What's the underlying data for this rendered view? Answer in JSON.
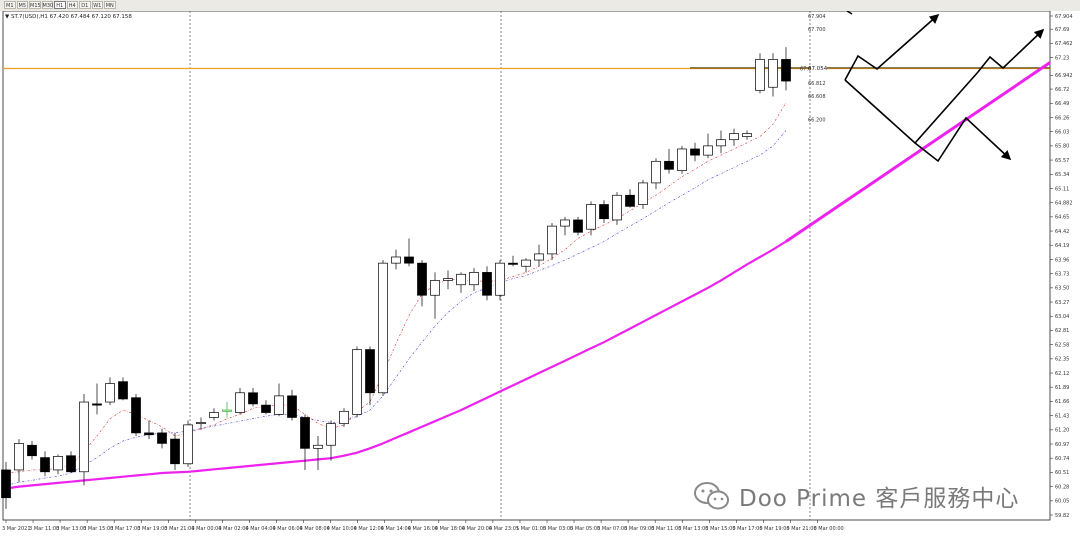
{
  "toolbar": {
    "timeframes": [
      "M1",
      "M5",
      "M15",
      "M30",
      "H1",
      "H4",
      "D1",
      "W1",
      "MN"
    ],
    "active": "H1"
  },
  "symbol_header": "▼ ST.7(USD),H1  67.420 67.484 67.120 67.158",
  "watermark": "Doo Prime 客戶服務中心",
  "chart_data": {
    "type": "candlestick",
    "title": "",
    "y_ticks": [
      67.904,
      67.69,
      67.462,
      67.23,
      66.942,
      66.72,
      66.49,
      66.26,
      66.03,
      65.8,
      65.57,
      65.34,
      65.11,
      64.882,
      64.65,
      64.42,
      64.19,
      63.96,
      63.73,
      63.5,
      63.27,
      63.04,
      62.81,
      62.58,
      62.35,
      62.12,
      61.89,
      61.66,
      61.43,
      61.2,
      60.97,
      60.74,
      60.51,
      60.28,
      60.05,
      59.82
    ],
    "x_ticks": [
      "3 Mar 2021",
      "3 Mar 11:00",
      "3 Mar 13:00",
      "3 Mar 15:00",
      "3 Mar 17:00",
      "3 Mar 19:00",
      "3 Mar 21:00",
      "4 Mar 00:00",
      "4 Mar 02:00",
      "4 Mar 04:00",
      "4 Mar 06:00",
      "4 Mar 08:00",
      "4 Mar 10:00",
      "4 Mar 12:00",
      "4 Mar 14:00",
      "4 Mar 16:00",
      "4 Mar 18:00",
      "4 Mar 20:00",
      "4 Mar 23:01",
      "5 Mar 01:00",
      "5 Mar 03:00",
      "5 Mar 05:00",
      "5 Mar 07:00",
      "5 Mar 09:00",
      "5 Mar 11:00",
      "5 Mar 13:00",
      "5 Mar 15:00",
      "5 Mar 17:00",
      "5 Mar 19:00",
      "5 Mar 21:00",
      "8 Mar 00:00"
    ],
    "candles": [
      {
        "o": 60.55,
        "h": 60.68,
        "l": 59.92,
        "c": 60.1
      },
      {
        "o": 60.55,
        "h": 61.05,
        "l": 60.35,
        "c": 60.98
      },
      {
        "o": 60.95,
        "h": 61.02,
        "l": 60.72,
        "c": 60.78
      },
      {
        "o": 60.75,
        "h": 60.85,
        "l": 60.45,
        "c": 60.52
      },
      {
        "o": 60.55,
        "h": 60.8,
        "l": 60.48,
        "c": 60.77
      },
      {
        "o": 60.78,
        "h": 60.85,
        "l": 60.5,
        "c": 60.52
      },
      {
        "o": 60.52,
        "h": 61.78,
        "l": 60.3,
        "c": 61.65
      },
      {
        "o": 61.62,
        "h": 61.95,
        "l": 61.45,
        "c": 61.6
      },
      {
        "o": 61.65,
        "h": 62.05,
        "l": 61.6,
        "c": 61.95
      },
      {
        "o": 61.98,
        "h": 62.05,
        "l": 61.68,
        "c": 61.7
      },
      {
        "o": 61.72,
        "h": 61.78,
        "l": 61.1,
        "c": 61.15
      },
      {
        "o": 61.15,
        "h": 61.35,
        "l": 61.05,
        "c": 61.12
      },
      {
        "o": 61.15,
        "h": 61.22,
        "l": 60.9,
        "c": 60.98
      },
      {
        "o": 61.05,
        "h": 61.15,
        "l": 60.55,
        "c": 60.65
      },
      {
        "o": 60.65,
        "h": 61.35,
        "l": 60.6,
        "c": 61.28
      },
      {
        "o": 61.3,
        "h": 61.4,
        "l": 61.2,
        "c": 61.32
      },
      {
        "o": 61.4,
        "h": 61.55,
        "l": 61.35,
        "c": 61.48
      },
      {
        "o": 61.5,
        "h": 61.65,
        "l": 61.4,
        "c": 61.52,
        "green": true
      },
      {
        "o": 61.48,
        "h": 61.88,
        "l": 61.45,
        "c": 61.8
      },
      {
        "o": 61.8,
        "h": 61.88,
        "l": 61.58,
        "c": 61.62
      },
      {
        "o": 61.6,
        "h": 61.68,
        "l": 61.45,
        "c": 61.48
      },
      {
        "o": 61.45,
        "h": 61.95,
        "l": 61.42,
        "c": 61.75
      },
      {
        "o": 61.75,
        "h": 61.85,
        "l": 61.35,
        "c": 61.4
      },
      {
        "o": 61.4,
        "h": 61.45,
        "l": 60.55,
        "c": 60.9
      },
      {
        "o": 60.9,
        "h": 61.1,
        "l": 60.55,
        "c": 60.95
      },
      {
        "o": 60.95,
        "h": 61.35,
        "l": 60.7,
        "c": 61.3
      },
      {
        "o": 61.3,
        "h": 61.55,
        "l": 61.25,
        "c": 61.5
      },
      {
        "o": 61.45,
        "h": 62.55,
        "l": 61.4,
        "c": 62.5
      },
      {
        "o": 62.5,
        "h": 62.55,
        "l": 61.6,
        "c": 61.8
      },
      {
        "o": 61.8,
        "h": 63.95,
        "l": 61.75,
        "c": 63.9
      },
      {
        "o": 63.9,
        "h": 64.12,
        "l": 63.8,
        "c": 64.0
      },
      {
        "o": 64.0,
        "h": 64.3,
        "l": 63.85,
        "c": 63.9
      },
      {
        "o": 63.9,
        "h": 63.95,
        "l": 63.2,
        "c": 63.38
      },
      {
        "o": 63.38,
        "h": 63.75,
        "l": 63.0,
        "c": 63.62
      },
      {
        "o": 63.62,
        "h": 63.78,
        "l": 63.48,
        "c": 63.65
      },
      {
        "o": 63.55,
        "h": 63.75,
        "l": 63.42,
        "c": 63.72
      },
      {
        "o": 63.55,
        "h": 63.82,
        "l": 63.45,
        "c": 63.75
      },
      {
        "o": 63.75,
        "h": 63.85,
        "l": 63.3,
        "c": 63.38
      },
      {
        "o": 63.38,
        "h": 63.95,
        "l": 63.3,
        "c": 63.9
      },
      {
        "o": 63.9,
        "h": 64.02,
        "l": 63.85,
        "c": 63.88
      },
      {
        "o": 63.85,
        "h": 63.98,
        "l": 63.75,
        "c": 63.95
      },
      {
        "o": 63.95,
        "h": 64.2,
        "l": 63.85,
        "c": 64.05
      },
      {
        "o": 64.05,
        "h": 64.55,
        "l": 63.95,
        "c": 64.5
      },
      {
        "o": 64.5,
        "h": 64.65,
        "l": 64.35,
        "c": 64.6
      },
      {
        "o": 64.6,
        "h": 64.65,
        "l": 64.35,
        "c": 64.4
      },
      {
        "o": 64.45,
        "h": 64.9,
        "l": 64.35,
        "c": 64.85
      },
      {
        "o": 64.85,
        "h": 64.92,
        "l": 64.55,
        "c": 64.62
      },
      {
        "o": 64.6,
        "h": 65.05,
        "l": 64.52,
        "c": 65.0
      },
      {
        "o": 65.0,
        "h": 65.1,
        "l": 64.8,
        "c": 64.82
      },
      {
        "o": 64.85,
        "h": 65.25,
        "l": 64.78,
        "c": 65.2
      },
      {
        "o": 65.2,
        "h": 65.6,
        "l": 65.1,
        "c": 65.55
      },
      {
        "o": 65.55,
        "h": 65.75,
        "l": 65.35,
        "c": 65.42
      },
      {
        "o": 65.4,
        "h": 65.8,
        "l": 65.35,
        "c": 65.75
      },
      {
        "o": 65.75,
        "h": 65.85,
        "l": 65.55,
        "c": 65.65
      },
      {
        "o": 65.65,
        "h": 66.0,
        "l": 65.6,
        "c": 65.8
      },
      {
        "o": 65.8,
        "h": 66.05,
        "l": 65.68,
        "c": 65.9
      },
      {
        "o": 65.9,
        "h": 66.08,
        "l": 65.8,
        "c": 66.0
      },
      {
        "o": 65.95,
        "h": 66.05,
        "l": 65.9,
        "c": 66.0
      },
      {
        "o": 66.7,
        "h": 67.3,
        "l": 66.65,
        "c": 67.2
      },
      {
        "o": 66.75,
        "h": 67.3,
        "l": 66.6,
        "c": 67.2
      },
      {
        "o": 67.2,
        "h": 67.4,
        "l": 66.7,
        "c": 66.85
      }
    ],
    "ma_fast": [
      60.5,
      60.52,
      60.55,
      60.55,
      60.58,
      60.62,
      60.85,
      61.1,
      61.38,
      61.52,
      61.45,
      61.35,
      61.25,
      61.1,
      61.15,
      61.22,
      61.28,
      61.38,
      61.45,
      61.55,
      61.58,
      61.6,
      61.6,
      61.45,
      61.3,
      61.22,
      61.28,
      61.5,
      61.65,
      62.1,
      62.6,
      63.05,
      63.4,
      63.55,
      63.65,
      63.62,
      63.62,
      63.6,
      63.62,
      63.68,
      63.75,
      63.85,
      63.98,
      64.12,
      64.3,
      64.42,
      64.52,
      64.62,
      64.75,
      64.88,
      65.0,
      65.15,
      65.3,
      65.42,
      65.55,
      65.65,
      65.75,
      65.85,
      65.95,
      66.15,
      66.5
    ],
    "ma_slow": [
      60.3,
      60.35,
      60.38,
      60.42,
      60.45,
      60.5,
      60.62,
      60.75,
      60.9,
      61.02,
      61.08,
      61.12,
      61.15,
      61.15,
      61.18,
      61.22,
      61.26,
      61.3,
      61.34,
      61.38,
      61.42,
      61.45,
      61.45,
      61.4,
      61.35,
      61.32,
      61.33,
      61.42,
      61.52,
      61.75,
      62.05,
      62.35,
      62.62,
      62.88,
      63.1,
      63.28,
      63.42,
      63.5,
      63.58,
      63.65,
      63.7,
      63.78,
      63.86,
      63.95,
      64.05,
      64.15,
      64.25,
      64.38,
      64.5,
      64.62,
      64.75,
      64.88,
      65.0,
      65.12,
      65.25,
      65.35,
      65.45,
      65.55,
      65.65,
      65.8,
      66.05
    ],
    "ma_long": [
      60.25,
      60.28,
      60.3,
      60.32,
      60.34,
      60.36,
      60.38,
      60.4,
      60.42,
      60.44,
      60.46,
      60.48,
      60.5,
      60.51,
      60.52,
      60.54,
      60.56,
      60.58,
      60.6,
      60.62,
      60.64,
      60.66,
      60.68,
      60.7,
      60.72,
      60.74,
      60.78,
      60.83,
      60.9,
      60.98,
      61.07,
      61.16,
      61.25,
      61.34,
      61.43,
      61.52,
      61.62,
      61.72,
      61.82,
      61.92,
      62.02,
      62.12,
      62.22,
      62.32,
      62.42,
      62.52,
      62.62,
      62.73,
      62.84,
      62.95,
      63.06,
      63.17,
      63.28,
      63.39,
      63.5,
      63.62,
      63.75,
      63.88,
      64.0,
      64.12,
      64.25
    ],
    "price_level": 67.054,
    "price_level_label": "67.054",
    "value_labels": [
      "67.904",
      "67.700",
      "67.054",
      "66.812",
      "66.608",
      "66.200"
    ]
  }
}
